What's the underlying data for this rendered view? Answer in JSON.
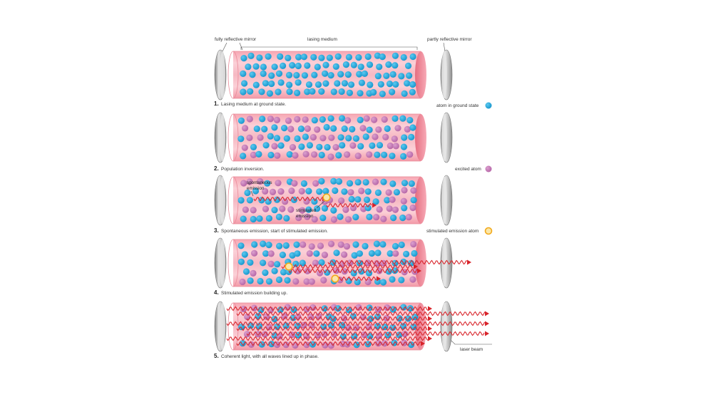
{
  "top_labels": {
    "fully_reflective_mirror": "fully reflective mirror",
    "lasing_medium": "lasing medium",
    "partly_reflective_mirror": "partly reflective mirror"
  },
  "panels": [
    {
      "number": "1.",
      "caption": "Lasing medium at ground state.",
      "legend": "atom in ground state"
    },
    {
      "number": "2.",
      "caption": "Population inversion.",
      "legend": "excited atom"
    },
    {
      "number": "3.",
      "caption": "Spontaneous emission, start of stimulated emission.",
      "legend": "stimulated emission atom"
    },
    {
      "number": "4.",
      "caption": "Stimulated emission building up.",
      "legend": ""
    },
    {
      "number": "5.",
      "caption": "Coherent light, with all waves lined up in phase.",
      "legend": "laser beam"
    }
  ],
  "annotations": {
    "spontaneous_emission": [
      "spontaneous",
      "emission"
    ],
    "stimulated_emission": [
      "stimulated",
      "emission"
    ]
  },
  "colors": {
    "ground_atom": "#1aa6dc",
    "excited_atom": "#c77ab4",
    "stimulated_ring": "#f2a91c",
    "stimulated_fill": "#fbe7a8",
    "wave": "#d8232a",
    "tube": "#f6b4be",
    "mirror": "#c9c9c9"
  }
}
